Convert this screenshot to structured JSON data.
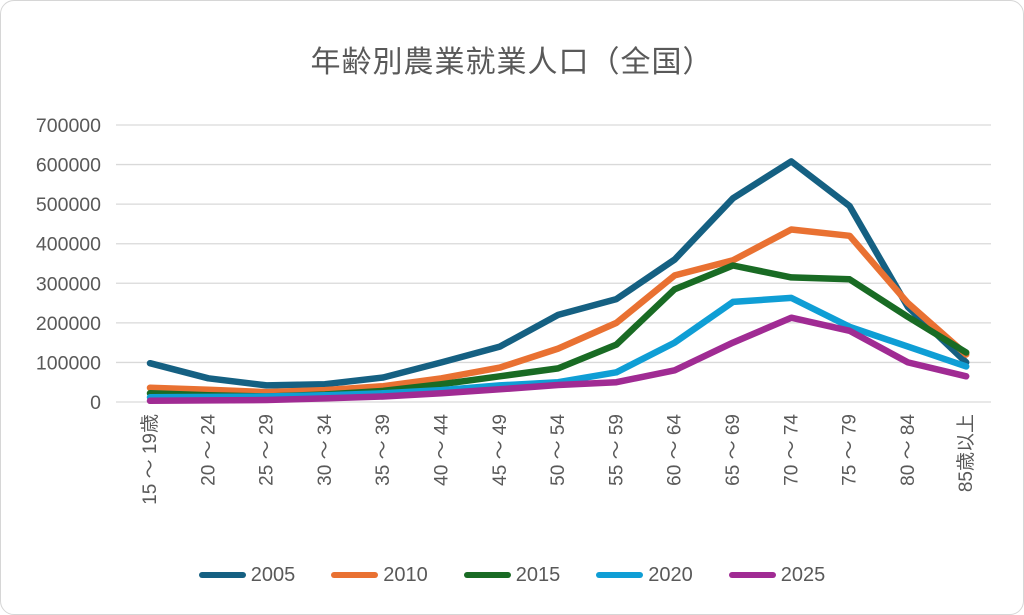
{
  "title": "年齢別農業就業人口（全国）",
  "colors": {
    "grid": "#d9d9d9",
    "axis_text": "#595959",
    "title_text": "#595959",
    "background": "#ffffff"
  },
  "chart_data": {
    "type": "line",
    "title": "年齢別農業就業人口（全国）",
    "xlabel": "",
    "ylabel": "",
    "ylim": [
      0,
      700000
    ],
    "ytick_step": 100000,
    "ytick_labels": [
      "0",
      "100000",
      "200000",
      "300000",
      "400000",
      "500000",
      "600000",
      "700000"
    ],
    "grid": "horizontal",
    "legend_position": "bottom",
    "x_tick_rotation": -90,
    "categories": [
      "15 ～ 19歳",
      "20 ～ 24",
      "25 ～ 29",
      "30 ～ 34",
      "35 ～ 39",
      "40 ～ 44",
      "45 ～ 49",
      "50 ～ 54",
      "55 ～ 59",
      "60 ～ 64",
      "65 ～ 69",
      "70 ～ 74",
      "75 ～ 79",
      "80 ～ 84",
      "85歳以上"
    ],
    "series": [
      {
        "name": "2005",
        "color": "#156082",
        "values": [
          98000,
          60000,
          42000,
          45000,
          62000,
          100000,
          140000,
          220000,
          260000,
          360000,
          515000,
          608000,
          495000,
          240000,
          100000
        ]
      },
      {
        "name": "2010",
        "color": "#E97132",
        "values": [
          36000,
          31000,
          25000,
          30000,
          40000,
          60000,
          87000,
          135000,
          200000,
          320000,
          358000,
          436000,
          420000,
          250000,
          120000
        ]
      },
      {
        "name": "2015",
        "color": "#196B24",
        "values": [
          22000,
          17000,
          14000,
          19000,
          28000,
          45000,
          65000,
          85000,
          145000,
          285000,
          345000,
          315000,
          310000,
          215000,
          125000
        ]
      },
      {
        "name": "2020",
        "color": "#0F9ED5",
        "values": [
          12000,
          13000,
          14000,
          17000,
          22000,
          30000,
          42000,
          50000,
          75000,
          150000,
          253000,
          263000,
          190000,
          140000,
          90000
        ]
      },
      {
        "name": "2025",
        "color": "#A02B93",
        "values": [
          3000,
          4000,
          5000,
          9000,
          14000,
          22000,
          32000,
          43000,
          50000,
          80000,
          150000,
          213000,
          180000,
          100000,
          65000
        ]
      }
    ]
  }
}
